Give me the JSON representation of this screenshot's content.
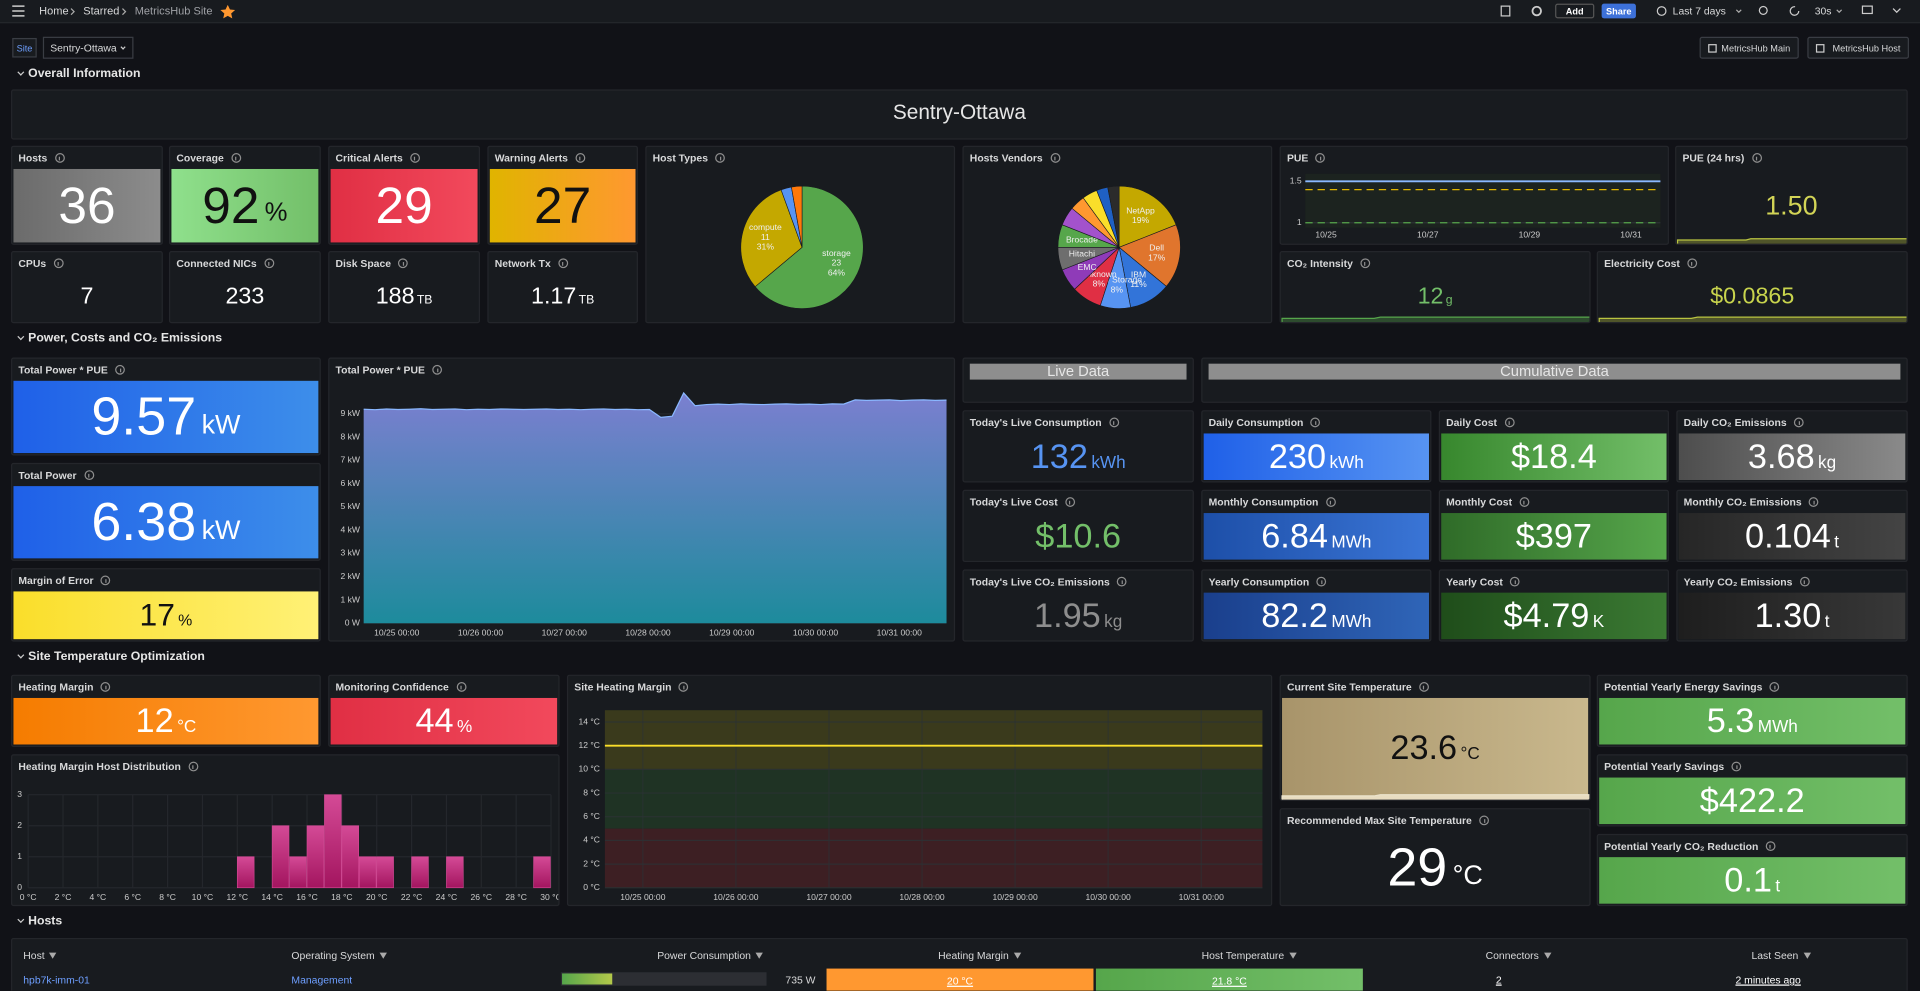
{
  "nav": {
    "breadcrumbs": [
      "Home",
      "Starred",
      "MetricsHub Site"
    ],
    "add": "Add",
    "share": "Share",
    "time_range": "Last 7 days",
    "refresh": "30s"
  },
  "variable": {
    "label": "Site",
    "value": "Sentry-Ottawa"
  },
  "links": [
    "MetricsHub Main",
    "MetricsHub Host"
  ],
  "sections": [
    "Overall Information",
    "Power, Costs and CO₂ Emissions",
    "Site Temperature Optimization",
    "Hosts"
  ],
  "site_title": "Sentry-Ottawa",
  "headers": [
    "Live Data",
    "Cumulative Data"
  ],
  "stats": [
    {
      "title": "Hosts",
      "value": "36"
    },
    {
      "title": "Coverage",
      "value": "92",
      "unit": "%"
    },
    {
      "title": "Critical Alerts",
      "value": "29"
    },
    {
      "title": "Warning Alerts",
      "value": "27"
    },
    {
      "title": "CPUs",
      "value": "7"
    },
    {
      "title": "Connected NICs",
      "value": "233"
    },
    {
      "title": "Disk Space",
      "value": "188",
      "unit": "TB"
    },
    {
      "title": "Network Tx",
      "value": "1.17",
      "unit": "TB"
    },
    {
      "title": "PUE (24 hrs)",
      "value": "1.50"
    },
    {
      "title": "CO₂ Intensity",
      "value": "12",
      "unit": "g"
    },
    {
      "title": "Electricity Cost",
      "value": "$0.0865"
    },
    {
      "title": "Total Power * PUE",
      "value": "9.57",
      "unit": "kW"
    },
    {
      "title": "Total Power",
      "value": "6.38",
      "unit": "kW"
    },
    {
      "title": "Margin of Error",
      "value": "17",
      "unit": "%"
    },
    {
      "title": "Today's Live Consumption",
      "value": "132",
      "unit": "kWh"
    },
    {
      "title": "Today's Live Cost",
      "value": "$10.6"
    },
    {
      "title": "Today's Live CO₂ Emissions",
      "value": "1.95",
      "unit": "kg"
    },
    {
      "title": "Daily Consumption",
      "value": "230",
      "unit": "kWh"
    },
    {
      "title": "Daily Cost",
      "value": "$18.4"
    },
    {
      "title": "Daily CO₂ Emissions",
      "value": "3.68",
      "unit": "kg"
    },
    {
      "title": "Monthly Consumption",
      "value": "6.84",
      "unit": "MWh"
    },
    {
      "title": "Monthly Cost",
      "value": "$397"
    },
    {
      "title": "Monthly CO₂ Emissions",
      "value": "0.104",
      "unit": "t"
    },
    {
      "title": "Yearly Consumption",
      "value": "82.2",
      "unit": "MWh"
    },
    {
      "title": "Yearly Cost",
      "value": "$4.79",
      "unit": "K"
    },
    {
      "title": "Yearly CO₂ Emissions",
      "value": "1.30",
      "unit": "t"
    },
    {
      "title": "Heating Margin",
      "value": "12",
      "unit": "°C"
    },
    {
      "title": "Monitoring Confidence",
      "value": "44",
      "unit": "%"
    },
    {
      "title": "Current Site Temperature",
      "value": "23.6",
      "unit": "°C"
    },
    {
      "title": "Recommended Max Site Temperature",
      "value": "29",
      "unit": "°C"
    },
    {
      "title": "Potential Yearly Energy Savings",
      "value": "5.3",
      "unit": "MWh"
    },
    {
      "title": "Potential Yearly Savings",
      "value": "$422.2"
    },
    {
      "title": "Potential Yearly CO₂ Reduction",
      "value": "0.1",
      "unit": "t"
    }
  ],
  "host_types": {
    "type": "pie",
    "title": "Host Types",
    "categories": [
      "storage",
      "compute",
      null,
      null
    ],
    "values": [
      23,
      11,
      1,
      1
    ],
    "percent_labels": [
      "64%",
      "31%",
      null,
      null
    ],
    "colors": [
      "#56a64b",
      "#c4a800",
      "#5794f2",
      "#ff780a"
    ]
  },
  "host_vendors": {
    "type": "pie",
    "title": "Hosts Vendors",
    "categories": [
      "NetApp",
      "Dell",
      "IBM",
      "Pure Storage",
      "Unknown",
      "EMC",
      "Hitachi",
      "Brocade",
      null,
      null,
      null,
      null,
      null
    ],
    "values": [
      19,
      17,
      11,
      8,
      8,
      6,
      6,
      6,
      5,
      4,
      4,
      3,
      3
    ],
    "value_labels": [
      "19%",
      "17%",
      "11%",
      "8%",
      "8%",
      null,
      null,
      null,
      null,
      null,
      null,
      null,
      null
    ],
    "colors": [
      "#c4a800",
      "#e0752d",
      "#3274d9",
      "#5794f2",
      "#e02f44",
      "#8f3bb8",
      "#6e6e6e",
      "#56a64b",
      "#a352cc",
      "#ff9830",
      "#fade2a",
      "#1f60c4",
      "#2b2b2b"
    ]
  },
  "pue_chart": {
    "type": "line",
    "title": "PUE",
    "values": [
      1.5,
      1.5,
      1.5,
      1.5,
      1.5,
      1.5,
      1.5,
      1.5,
      1.5,
      1.5,
      1.5,
      1.5,
      1.5,
      1.5,
      1.5,
      1.5,
      1.5,
      1.5,
      1.5,
      1.5
    ],
    "thresholds": [
      1.4,
      1
    ],
    "ylim": [
      0.94,
      1.59
    ],
    "yticks": [
      1.5,
      1
    ],
    "x_labels": [
      "10/25",
      "10/27",
      "10/29",
      "10/31"
    ],
    "color": "#8ab8ff"
  },
  "power_chart": {
    "type": "area",
    "title": "Total Power * PUE",
    "values": [
      9200,
      9180,
      9210,
      9190,
      9200,
      9220,
      9190,
      9200,
      9210,
      9180,
      9200,
      9190,
      9210,
      9200,
      9190,
      9200,
      9210,
      9190,
      9200,
      9180,
      9200,
      9210,
      9190,
      9200,
      9180,
      9190,
      8850,
      8900,
      9900,
      9350,
      9400,
      9420,
      9400,
      9430,
      9410,
      9400,
      9420,
      9430,
      9410,
      9420,
      9400,
      9430,
      9420,
      9600,
      9580,
      9590,
      9600,
      9570,
      9590,
      9600,
      9580,
      9590
    ],
    "ylim": [
      0,
      10000
    ],
    "yticks": [
      {
        "value": 0,
        "label": "0 W"
      },
      {
        "value": 1000,
        "label": "1 kW"
      },
      {
        "value": 2000,
        "label": "2 kW"
      },
      {
        "value": 3000,
        "label": "3 kW"
      },
      {
        "value": 4000,
        "label": "4 kW"
      },
      {
        "value": 5000,
        "label": "5 kW"
      },
      {
        "value": 6000,
        "label": "6 kW"
      },
      {
        "value": 7000,
        "label": "7 kW"
      },
      {
        "value": 8000,
        "label": "8 kW"
      },
      {
        "value": 9000,
        "label": "9 kW"
      }
    ],
    "x_labels": [
      "10/25 00:00",
      "10/26 00:00",
      "10/27 00:00",
      "10/28 00:00",
      "10/29 00:00",
      "10/30 00:00",
      "10/31 00:00"
    ],
    "color": "#8ab8ff"
  },
  "histogram": {
    "type": "histogram",
    "title": "Heating Margin Host Distribution",
    "bins": [
      0,
      1,
      2,
      3,
      4,
      5,
      6,
      7,
      8,
      9,
      10,
      11,
      12,
      13,
      14,
      15,
      16,
      17,
      18,
      19,
      20,
      21,
      22,
      23,
      24,
      25,
      26,
      27,
      28,
      29,
      30
    ],
    "counts": [
      0,
      0,
      0,
      0,
      0,
      0,
      0,
      0,
      0,
      0,
      0,
      0,
      1,
      0,
      2,
      1,
      2,
      3,
      2,
      1,
      1,
      0,
      1,
      0,
      1,
      0,
      0,
      0,
      0,
      1
    ],
    "ylim": [
      0,
      3
    ],
    "yticks": [
      0,
      1,
      2,
      3
    ],
    "xticks": [
      {
        "value": 0,
        "label": "0 °C"
      },
      {
        "value": 2,
        "label": "2 °C"
      },
      {
        "value": 4,
        "label": "4 °C"
      },
      {
        "value": 6,
        "label": "6 °C"
      },
      {
        "value": 8,
        "label": "8 °C"
      },
      {
        "value": 10,
        "label": "10 °C"
      },
      {
        "value": 12,
        "label": "12 °C"
      },
      {
        "value": 14,
        "label": "14 °C"
      },
      {
        "value": 16,
        "label": "16 °C"
      },
      {
        "value": 18,
        "label": "18 °C"
      },
      {
        "value": 20,
        "label": "20 °C"
      },
      {
        "value": 22,
        "label": "22 °C"
      },
      {
        "value": 24,
        "label": "24 °C"
      },
      {
        "value": 26,
        "label": "26 °C"
      },
      {
        "value": 28,
        "label": "28 °C"
      },
      {
        "value": 30,
        "label": "30 °C"
      }
    ],
    "color": "#d44a96"
  },
  "heating_chart": {
    "type": "line",
    "title": "Site Heating Margin",
    "values": [
      12,
      12,
      12,
      12,
      12,
      12,
      12,
      12,
      12,
      12,
      12,
      12,
      12,
      12,
      12,
      12,
      12,
      12,
      12,
      12
    ],
    "thresholds": [
      5,
      10
    ],
    "ylim": [
      0,
      15
    ],
    "yticks": [
      {
        "value": 0,
        "label": "0 °C"
      },
      {
        "value": 2,
        "label": "2 °C"
      },
      {
        "value": 4,
        "label": "4 °C"
      },
      {
        "value": 6,
        "label": "6 °C"
      },
      {
        "value": 8,
        "label": "8 °C"
      },
      {
        "value": 10,
        "label": "10 °C"
      },
      {
        "value": 12,
        "label": "12 °C"
      },
      {
        "value": 14,
        "label": "14 °C"
      }
    ],
    "x_labels": [
      "10/25 00:00",
      "10/26 00:00",
      "10/27 00:00",
      "10/28 00:00",
      "10/29 00:00",
      "10/30 00:00",
      "10/31 00:00"
    ],
    "color": "#fade2a"
  },
  "table": {
    "columns": [
      "Host",
      "Operating System",
      "Power Consumption",
      "Heating Margin",
      "Host Temperature",
      "Connectors",
      "Last Seen"
    ],
    "rows": [
      [
        "hpb7k-imm-01",
        "Management",
        "735 W",
        "20 °C",
        "21.8 °C",
        "2",
        "2 minutes ago"
      ]
    ]
  }
}
